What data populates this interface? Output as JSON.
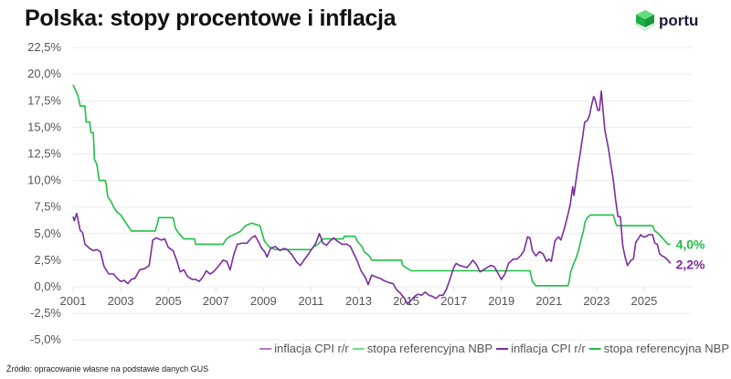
{
  "title": "Polska: stopy procentowe i inflacja",
  "logo": {
    "text": "portu",
    "icon": "green-cube-icon"
  },
  "source": "Źródło: opracowanie własne na podstawie danych GUS",
  "chart_data": {
    "type": "line",
    "title": "Polska: stopy procentowe i inflacja",
    "xlabel": "",
    "ylabel": "",
    "xlim": [
      2001,
      2027.1
    ],
    "ylim": [
      -5,
      22.5
    ],
    "x_ticks": [
      "2001",
      "2003",
      "2005",
      "2007",
      "2009",
      "2011",
      "2013",
      "2015",
      "2017",
      "2019",
      "2021",
      "2023",
      "2025"
    ],
    "y_ticks": [
      "22,5%",
      "20,0%",
      "17,5%",
      "15,0%",
      "12,5%",
      "10,0%",
      "7,5%",
      "5,0%",
      "2,5%",
      "0,0%",
      "-2,5%",
      "-5,0%"
    ],
    "grid": true,
    "legend_position": "bottom-right",
    "legend": [
      {
        "label": "inflacja CPI r/r",
        "color": "#b07cc6"
      },
      {
        "label": "stopa referencyjna NBP",
        "color": "#6fdc8c"
      },
      {
        "label": "inflacja CPI r/r",
        "color": "#7b2d9e"
      },
      {
        "label": "stopa referencyjna NBP",
        "color": "#1fbf45"
      }
    ],
    "series": [
      {
        "name": "stopa referencyjna NBP",
        "color": "#1fbf45",
        "end_label": "4,0%",
        "points": [
          [
            2001.0,
            19.0
          ],
          [
            2001.2,
            18.0
          ],
          [
            2001.3,
            17.0
          ],
          [
            2001.5,
            17.0
          ],
          [
            2001.55,
            15.5
          ],
          [
            2001.7,
            15.5
          ],
          [
            2001.75,
            14.5
          ],
          [
            2001.85,
            14.5
          ],
          [
            2001.9,
            12.0
          ],
          [
            2002.0,
            11.5
          ],
          [
            2002.1,
            10.0
          ],
          [
            2002.35,
            10.0
          ],
          [
            2002.4,
            9.5
          ],
          [
            2002.45,
            8.5
          ],
          [
            2002.6,
            8.0
          ],
          [
            2002.7,
            7.5
          ],
          [
            2002.85,
            7.0
          ],
          [
            2003.0,
            6.75
          ],
          [
            2003.45,
            5.25
          ],
          [
            2004.45,
            5.25
          ],
          [
            2004.55,
            6.0
          ],
          [
            2004.6,
            6.5
          ],
          [
            2005.2,
            6.5
          ],
          [
            2005.3,
            5.5
          ],
          [
            2005.45,
            5.0
          ],
          [
            2005.55,
            4.75
          ],
          [
            2005.65,
            4.5
          ],
          [
            2006.1,
            4.5
          ],
          [
            2006.15,
            4.0
          ],
          [
            2007.3,
            4.0
          ],
          [
            2007.45,
            4.5
          ],
          [
            2007.6,
            4.75
          ],
          [
            2007.85,
            5.0
          ],
          [
            2008.05,
            5.25
          ],
          [
            2008.15,
            5.5
          ],
          [
            2008.25,
            5.75
          ],
          [
            2008.5,
            6.0
          ],
          [
            2008.85,
            5.75
          ],
          [
            2008.95,
            5.0
          ],
          [
            2009.05,
            4.25
          ],
          [
            2009.15,
            4.0
          ],
          [
            2009.25,
            3.75
          ],
          [
            2009.5,
            3.5
          ],
          [
            2011.0,
            3.5
          ],
          [
            2011.1,
            3.75
          ],
          [
            2011.3,
            4.0
          ],
          [
            2011.4,
            4.25
          ],
          [
            2011.5,
            4.5
          ],
          [
            2012.35,
            4.5
          ],
          [
            2012.4,
            4.75
          ],
          [
            2012.85,
            4.75
          ],
          [
            2012.95,
            4.25
          ],
          [
            2013.05,
            4.0
          ],
          [
            2013.15,
            3.75
          ],
          [
            2013.25,
            3.25
          ],
          [
            2013.4,
            3.0
          ],
          [
            2013.5,
            2.75
          ],
          [
            2013.55,
            2.5
          ],
          [
            2014.8,
            2.5
          ],
          [
            2014.85,
            2.0
          ],
          [
            2015.2,
            1.5
          ],
          [
            2020.2,
            1.5
          ],
          [
            2020.3,
            0.5
          ],
          [
            2020.45,
            0.1
          ],
          [
            2021.8,
            0.1
          ],
          [
            2021.85,
            0.5
          ],
          [
            2021.9,
            1.25
          ],
          [
            2022.05,
            2.25
          ],
          [
            2022.15,
            2.75
          ],
          [
            2022.25,
            3.5
          ],
          [
            2022.35,
            4.5
          ],
          [
            2022.45,
            5.25
          ],
          [
            2022.5,
            6.0
          ],
          [
            2022.6,
            6.5
          ],
          [
            2022.75,
            6.75
          ],
          [
            2023.7,
            6.75
          ],
          [
            2023.8,
            6.0
          ],
          [
            2023.85,
            5.75
          ],
          [
            2025.35,
            5.75
          ],
          [
            2025.45,
            5.25
          ],
          [
            2025.6,
            5.0
          ],
          [
            2025.7,
            4.75
          ],
          [
            2025.8,
            4.5
          ],
          [
            2025.9,
            4.25
          ],
          [
            2026.0,
            4.0
          ],
          [
            2026.1,
            4.0
          ]
        ]
      },
      {
        "name": "inflacja CPI r/r",
        "color": "#7b2d9e",
        "end_label": "2,2%",
        "points": [
          [
            2001.0,
            6.6
          ],
          [
            2001.05,
            6.2
          ],
          [
            2001.15,
            6.9
          ],
          [
            2001.3,
            5.3
          ],
          [
            2001.4,
            5.1
          ],
          [
            2001.5,
            4.0
          ],
          [
            2001.7,
            3.6
          ],
          [
            2001.85,
            3.4
          ],
          [
            2002.0,
            3.5
          ],
          [
            2002.15,
            3.3
          ],
          [
            2002.3,
            1.9
          ],
          [
            2002.5,
            1.2
          ],
          [
            2002.7,
            1.2
          ],
          [
            2002.85,
            0.8
          ],
          [
            2003.0,
            0.5
          ],
          [
            2003.15,
            0.6
          ],
          [
            2003.3,
            0.3
          ],
          [
            2003.45,
            0.7
          ],
          [
            2003.6,
            0.8
          ],
          [
            2003.8,
            1.6
          ],
          [
            2004.0,
            1.7
          ],
          [
            2004.2,
            2.0
          ],
          [
            2004.35,
            4.4
          ],
          [
            2004.5,
            4.6
          ],
          [
            2004.7,
            4.4
          ],
          [
            2004.85,
            4.5
          ],
          [
            2005.0,
            3.7
          ],
          [
            2005.2,
            3.4
          ],
          [
            2005.35,
            2.5
          ],
          [
            2005.5,
            1.4
          ],
          [
            2005.65,
            1.6
          ],
          [
            2005.8,
            1.0
          ],
          [
            2006.0,
            0.7
          ],
          [
            2006.15,
            0.7
          ],
          [
            2006.3,
            0.5
          ],
          [
            2006.45,
            0.9
          ],
          [
            2006.6,
            1.5
          ],
          [
            2006.75,
            1.2
          ],
          [
            2006.9,
            1.4
          ],
          [
            2007.1,
            1.9
          ],
          [
            2007.3,
            2.5
          ],
          [
            2007.45,
            2.4
          ],
          [
            2007.6,
            1.6
          ],
          [
            2007.75,
            3.0
          ],
          [
            2007.9,
            4.0
          ],
          [
            2008.1,
            4.1
          ],
          [
            2008.3,
            4.1
          ],
          [
            2008.5,
            4.6
          ],
          [
            2008.65,
            4.8
          ],
          [
            2008.8,
            4.2
          ],
          [
            2008.9,
            3.7
          ],
          [
            2009.05,
            3.3
          ],
          [
            2009.15,
            2.8
          ],
          [
            2009.3,
            3.6
          ],
          [
            2009.5,
            3.8
          ],
          [
            2009.7,
            3.4
          ],
          [
            2009.85,
            3.6
          ],
          [
            2010.0,
            3.5
          ],
          [
            2010.2,
            3.0
          ],
          [
            2010.4,
            2.3
          ],
          [
            2010.55,
            2.0
          ],
          [
            2010.7,
            2.5
          ],
          [
            2010.9,
            3.1
          ],
          [
            2011.05,
            3.6
          ],
          [
            2011.2,
            4.1
          ],
          [
            2011.35,
            5.0
          ],
          [
            2011.5,
            4.1
          ],
          [
            2011.65,
            3.9
          ],
          [
            2011.8,
            4.3
          ],
          [
            2011.95,
            4.6
          ],
          [
            2012.1,
            4.3
          ],
          [
            2012.3,
            4.0
          ],
          [
            2012.5,
            4.0
          ],
          [
            2012.65,
            3.8
          ],
          [
            2012.8,
            3.1
          ],
          [
            2012.95,
            2.4
          ],
          [
            2013.1,
            1.5
          ],
          [
            2013.3,
            0.8
          ],
          [
            2013.4,
            0.2
          ],
          [
            2013.55,
            1.1
          ],
          [
            2013.75,
            0.9
          ],
          [
            2013.9,
            0.8
          ],
          [
            2014.05,
            0.6
          ],
          [
            2014.25,
            0.4
          ],
          [
            2014.45,
            0.3
          ],
          [
            2014.6,
            -0.3
          ],
          [
            2014.75,
            -0.6
          ],
          [
            2014.9,
            -1.0
          ],
          [
            2015.05,
            -1.6
          ],
          [
            2015.2,
            -1.3
          ],
          [
            2015.35,
            -0.9
          ],
          [
            2015.5,
            -0.7
          ],
          [
            2015.65,
            -0.8
          ],
          [
            2015.8,
            -0.5
          ],
          [
            2015.95,
            -0.8
          ],
          [
            2016.1,
            -0.9
          ],
          [
            2016.25,
            -1.1
          ],
          [
            2016.4,
            -0.8
          ],
          [
            2016.55,
            -0.8
          ],
          [
            2016.7,
            -0.2
          ],
          [
            2016.85,
            0.8
          ],
          [
            2017.0,
            1.8
          ],
          [
            2017.1,
            2.2
          ],
          [
            2017.25,
            2.0
          ],
          [
            2017.4,
            1.9
          ],
          [
            2017.55,
            1.8
          ],
          [
            2017.7,
            2.2
          ],
          [
            2017.8,
            2.5
          ],
          [
            2017.95,
            2.1
          ],
          [
            2018.1,
            1.4
          ],
          [
            2018.25,
            1.6
          ],
          [
            2018.4,
            1.8
          ],
          [
            2018.55,
            2.0
          ],
          [
            2018.7,
            1.9
          ],
          [
            2018.85,
            1.3
          ],
          [
            2019.0,
            0.7
          ],
          [
            2019.15,
            1.2
          ],
          [
            2019.3,
            2.2
          ],
          [
            2019.5,
            2.6
          ],
          [
            2019.65,
            2.6
          ],
          [
            2019.8,
            2.9
          ],
          [
            2019.95,
            3.4
          ],
          [
            2020.1,
            4.7
          ],
          [
            2020.2,
            4.6
          ],
          [
            2020.3,
            3.4
          ],
          [
            2020.45,
            2.9
          ],
          [
            2020.6,
            3.3
          ],
          [
            2020.75,
            3.1
          ],
          [
            2020.9,
            2.4
          ],
          [
            2021.0,
            2.6
          ],
          [
            2021.1,
            2.4
          ],
          [
            2021.25,
            4.3
          ],
          [
            2021.4,
            4.7
          ],
          [
            2021.5,
            4.4
          ],
          [
            2021.65,
            5.5
          ],
          [
            2021.8,
            6.8
          ],
          [
            2021.9,
            7.8
          ],
          [
            2022.0,
            9.4
          ],
          [
            2022.05,
            8.6
          ],
          [
            2022.2,
            11.0
          ],
          [
            2022.3,
            12.4
          ],
          [
            2022.4,
            13.9
          ],
          [
            2022.5,
            15.5
          ],
          [
            2022.6,
            15.6
          ],
          [
            2022.7,
            16.1
          ],
          [
            2022.8,
            17.2
          ],
          [
            2022.88,
            17.9
          ],
          [
            2022.95,
            17.5
          ],
          [
            2023.05,
            16.6
          ],
          [
            2023.12,
            16.6
          ],
          [
            2023.2,
            18.4
          ],
          [
            2023.35,
            14.7
          ],
          [
            2023.5,
            13.0
          ],
          [
            2023.6,
            11.5
          ],
          [
            2023.7,
            10.1
          ],
          [
            2023.8,
            8.2
          ],
          [
            2023.9,
            6.6
          ],
          [
            2024.0,
            6.6
          ],
          [
            2024.1,
            3.9
          ],
          [
            2024.2,
            2.8
          ],
          [
            2024.3,
            2.0
          ],
          [
            2024.45,
            2.5
          ],
          [
            2024.55,
            2.6
          ],
          [
            2024.65,
            4.2
          ],
          [
            2024.75,
            4.5
          ],
          [
            2024.85,
            4.9
          ],
          [
            2024.95,
            4.7
          ],
          [
            2025.05,
            4.7
          ],
          [
            2025.2,
            4.9
          ],
          [
            2025.35,
            4.9
          ],
          [
            2025.45,
            4.1
          ],
          [
            2025.55,
            4.0
          ],
          [
            2025.65,
            3.1
          ],
          [
            2025.75,
            2.9
          ],
          [
            2025.85,
            2.8
          ],
          [
            2026.0,
            2.5
          ],
          [
            2026.1,
            2.2
          ]
        ]
      }
    ]
  }
}
